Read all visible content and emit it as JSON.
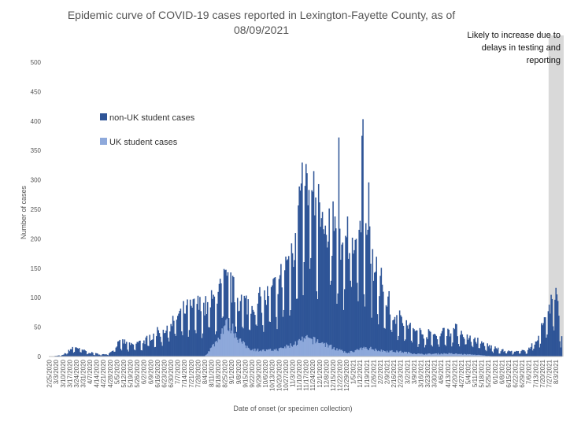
{
  "chart_data": {
    "type": "bar",
    "stacked": true,
    "title": "Epidemic curve of COVID-19 cases reported in Lexington-Fayette County, as of 08/09/2021",
    "title_lines": [
      "Epidemic curve of COVID-19 cases reported in Lexington-Fayette County, as of",
      "08/09/2021"
    ],
    "xlabel": "Date of onset (or specimen collection)",
    "ylabel": "Number of cases",
    "ylim": [
      0,
      500
    ],
    "yticks": [
      0,
      50,
      100,
      150,
      200,
      250,
      300,
      350,
      400,
      450,
      500
    ],
    "grid": false,
    "legend_position": "upper-left",
    "x_range": [
      "2020-02-25",
      "2021-08-09"
    ],
    "xtick_labels": [
      "2/25/2020",
      "3/3/2020",
      "3/10/2020",
      "3/17/2020",
      "3/24/2020",
      "3/31/2020",
      "4/7/2020",
      "4/14/2020",
      "4/21/2020",
      "4/28/2020",
      "5/5/2020",
      "5/12/2020",
      "5/19/2020",
      "5/26/2020",
      "6/2/2020",
      "6/9/2020",
      "6/16/2020",
      "6/23/2020",
      "6/30/2020",
      "7/7/2020",
      "7/14/2020",
      "7/21/2020",
      "7/28/2020",
      "8/4/2020",
      "8/11/2020",
      "8/18/2020",
      "8/25/2020",
      "9/1/2020",
      "9/8/2020",
      "9/15/2020",
      "9/22/2020",
      "9/29/2020",
      "10/6/2020",
      "10/13/2020",
      "10/20/2020",
      "10/27/2020",
      "11/3/2020",
      "11/10/2020",
      "11/17/2020",
      "11/24/2020",
      "12/1/2020",
      "12/8/2020",
      "12/15/2020",
      "12/22/2020",
      "12/29/2020",
      "1/5/2021",
      "1/12/2021",
      "1/19/2021",
      "1/26/2021",
      "2/2/2021",
      "2/9/2021",
      "2/16/2021",
      "2/23/2021",
      "3/2/2021",
      "3/9/2021",
      "3/16/2021",
      "3/23/2021",
      "3/30/2021",
      "4/6/2021",
      "4/13/2021",
      "4/20/2021",
      "4/27/2021",
      "5/4/2021",
      "5/11/2021",
      "5/18/2021",
      "5/25/2021",
      "6/1/2021",
      "6/8/2021",
      "6/15/2021",
      "6/22/2021",
      "6/29/2021",
      "7/6/2021",
      "7/13/2021",
      "7/20/2021",
      "7/27/2021",
      "8/3/2021"
    ],
    "series": [
      {
        "name": "non-UK student cases",
        "color": "#2F5597"
      },
      {
        "name": "UK student cases",
        "color": "#8EA9DB"
      }
    ],
    "total_cases_anchor_points": [
      [
        "2020-02-25",
        0
      ],
      [
        "2020-03-10",
        2
      ],
      [
        "2020-03-17",
        10
      ],
      [
        "2020-03-24",
        14
      ],
      [
        "2020-03-31",
        9
      ],
      [
        "2020-04-07",
        6
      ],
      [
        "2020-04-14",
        4
      ],
      [
        "2020-04-21",
        3
      ],
      [
        "2020-04-28",
        6
      ],
      [
        "2020-05-05",
        18
      ],
      [
        "2020-05-12",
        22
      ],
      [
        "2020-05-19",
        16
      ],
      [
        "2020-05-26",
        20
      ],
      [
        "2020-06-02",
        22
      ],
      [
        "2020-06-09",
        30
      ],
      [
        "2020-06-16",
        35
      ],
      [
        "2020-06-23",
        40
      ],
      [
        "2020-06-30",
        50
      ],
      [
        "2020-07-07",
        60
      ],
      [
        "2020-07-14",
        68
      ],
      [
        "2020-07-21",
        70
      ],
      [
        "2020-07-28",
        75
      ],
      [
        "2020-08-04",
        72
      ],
      [
        "2020-08-11",
        80
      ],
      [
        "2020-08-18",
        90
      ],
      [
        "2020-08-25",
        110
      ],
      [
        "2020-09-01",
        100
      ],
      [
        "2020-09-08",
        85
      ],
      [
        "2020-09-15",
        78
      ],
      [
        "2020-09-22",
        80
      ],
      [
        "2020-09-29",
        82
      ],
      [
        "2020-10-06",
        85
      ],
      [
        "2020-10-13",
        95
      ],
      [
        "2020-10-20",
        110
      ],
      [
        "2020-10-27",
        130
      ],
      [
        "2020-11-03",
        160
      ],
      [
        "2020-11-10",
        220
      ],
      [
        "2020-11-17",
        250
      ],
      [
        "2020-11-24",
        235
      ],
      [
        "2020-12-01",
        215
      ],
      [
        "2020-12-08",
        200
      ],
      [
        "2020-12-15",
        185
      ],
      [
        "2020-12-22",
        170
      ],
      [
        "2020-12-29",
        175
      ],
      [
        "2021-01-05",
        200
      ],
      [
        "2021-01-12",
        195
      ],
      [
        "2021-01-19",
        170
      ],
      [
        "2021-01-26",
        140
      ],
      [
        "2021-02-02",
        110
      ],
      [
        "2021-02-09",
        85
      ],
      [
        "2021-02-16",
        65
      ],
      [
        "2021-02-23",
        55
      ],
      [
        "2021-03-02",
        45
      ],
      [
        "2021-03-09",
        40
      ],
      [
        "2021-03-16",
        35
      ],
      [
        "2021-03-23",
        33
      ],
      [
        "2021-03-30",
        32
      ],
      [
        "2021-04-06",
        35
      ],
      [
        "2021-04-13",
        38
      ],
      [
        "2021-04-20",
        40
      ],
      [
        "2021-04-27",
        36
      ],
      [
        "2021-05-04",
        30
      ],
      [
        "2021-05-11",
        25
      ],
      [
        "2021-05-18",
        20
      ],
      [
        "2021-05-25",
        16
      ],
      [
        "2021-06-01",
        12
      ],
      [
        "2021-06-08",
        9
      ],
      [
        "2021-06-15",
        8
      ],
      [
        "2021-06-22",
        7
      ],
      [
        "2021-06-29",
        8
      ],
      [
        "2021-07-06",
        12
      ],
      [
        "2021-07-13",
        22
      ],
      [
        "2021-07-20",
        45
      ],
      [
        "2021-07-27",
        75
      ],
      [
        "2021-08-03",
        90
      ],
      [
        "2021-08-09",
        25
      ]
    ],
    "uk_student_cases_anchor_points": [
      [
        "2020-02-25",
        0
      ],
      [
        "2020-08-04",
        0
      ],
      [
        "2020-08-11",
        15
      ],
      [
        "2020-08-18",
        30
      ],
      [
        "2020-08-25",
        55
      ],
      [
        "2020-09-01",
        50
      ],
      [
        "2020-09-08",
        30
      ],
      [
        "2020-09-15",
        18
      ],
      [
        "2020-09-22",
        12
      ],
      [
        "2020-10-06",
        10
      ],
      [
        "2020-10-20",
        12
      ],
      [
        "2020-11-03",
        20
      ],
      [
        "2020-11-17",
        30
      ],
      [
        "2020-12-01",
        25
      ],
      [
        "2020-12-15",
        15
      ],
      [
        "2020-12-29",
        6
      ],
      [
        "2021-01-19",
        15
      ],
      [
        "2021-02-02",
        10
      ],
      [
        "2021-02-23",
        8
      ],
      [
        "2021-03-16",
        4
      ],
      [
        "2021-04-13",
        5
      ],
      [
        "2021-05-11",
        3
      ],
      [
        "2021-06-01",
        0
      ],
      [
        "2021-08-09",
        0
      ]
    ],
    "annotation": {
      "text_lines": [
        "Likely to increase due to",
        "delays in testing and",
        "reporting"
      ],
      "start": "2021-07-27",
      "end": "2021-08-09",
      "shade_color": "#D9D9D9"
    }
  }
}
